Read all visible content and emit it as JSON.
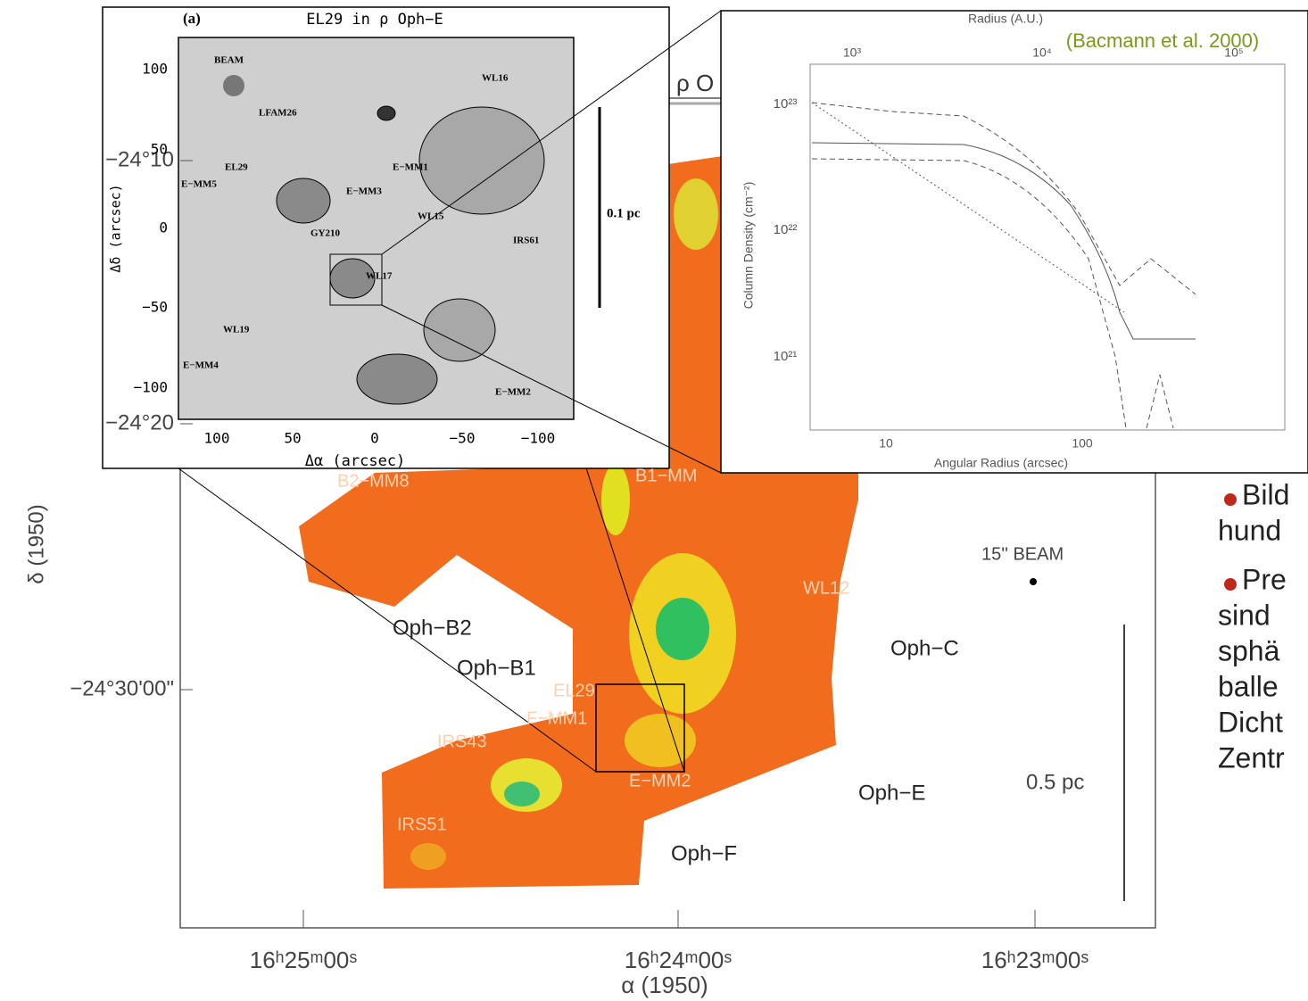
{
  "main_map": {
    "title_fragment": "ρ O",
    "yticks": [
      "−24°10",
      "−24°20",
      "−24°30'00\""
    ],
    "ylabel": "δ (1950)",
    "xticks": [
      "16ʰ25ᵐ00ˢ",
      "16ʰ24ᵐ00ˢ",
      "16ʰ23ᵐ00ˢ"
    ],
    "xlabel": "α (1950)",
    "labels": [
      "B2−MM8",
      "B1−MM",
      "Oph−B2",
      "Oph−B1",
      "Oph−C",
      "WL12",
      "EL29",
      "F−MM1",
      "IRS43",
      "IRS51",
      "E−MM2",
      "Oph−E",
      "Oph−F",
      "15'' BEAM",
      "0.5 pc"
    ]
  },
  "inset": {
    "panel": "(a)",
    "title": "EL29 in ρ Oph−E",
    "xticks": [
      "100",
      "50",
      "0",
      "−50",
      "−100"
    ],
    "yticks": [
      "100",
      "50",
      "0",
      "−50",
      "−100"
    ],
    "xlabel": "Δα (arcsec)",
    "ylabel": "Δδ (arcsec)",
    "labels": [
      "BEAM",
      "WL16",
      "LFAM26",
      "EL29",
      "E−MM1",
      "E−MM5",
      "E−MM3",
      "WL15",
      "GY210",
      "IRS61",
      "WL17",
      "WL19",
      "E−MM4",
      "E−MM2"
    ],
    "scale": "0.1 pc"
  },
  "profile": {
    "top_label": "Radius (A.U.)",
    "top_ticks": [
      "10³",
      "10⁴",
      "10⁵"
    ],
    "credit": "(Bacmann et al. 2000)",
    "yticks": [
      "10²³",
      "10²²",
      "10²¹"
    ],
    "ylabel": "Column Density (cm⁻²)",
    "xticks": [
      "10",
      "100"
    ],
    "xlabel": "Angular Radius (arcsec)"
  },
  "bullets": [
    [
      "Bild",
      "hund"
    ],
    [
      "Pre",
      "sind",
      "sphä",
      "balle",
      "Dicht",
      "Zentr"
    ]
  ]
}
